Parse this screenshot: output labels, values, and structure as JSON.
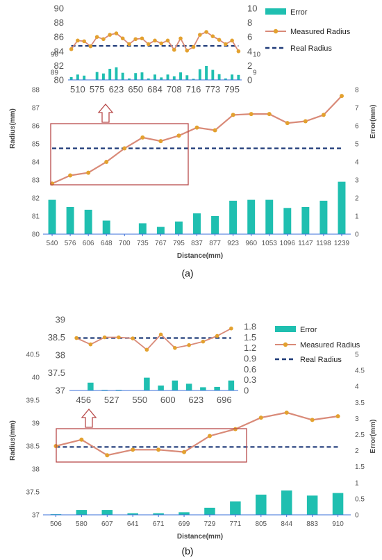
{
  "colors": {
    "error_bar": "#1fbfb0",
    "measured": "#d98a78",
    "measured_marker": "#e3a12f",
    "real": "#1e3a78",
    "box": "#b84a4a",
    "axis_text": "#555555"
  },
  "legend": {
    "error": "Error",
    "measured": "Measured Radius",
    "real": "Real Radius"
  },
  "chart_data": [
    {
      "panel": "(a)",
      "type": "line+bar",
      "xlabel": "Distance(mm)",
      "ylabel_left": "Radius(mm)",
      "ylabel_right": "Error(mm)",
      "categories": [
        "540",
        "576",
        "606",
        "648",
        "700",
        "735",
        "767",
        "795",
        "837",
        "877",
        "923",
        "960",
        "1053",
        "1096",
        "1147",
        "1198",
        "1239"
      ],
      "measured_radius": [
        82.8,
        83.25,
        83.4,
        84.0,
        84.75,
        85.35,
        85.15,
        85.45,
        85.9,
        85.75,
        86.6,
        86.65,
        86.65,
        86.15,
        86.25,
        86.6,
        87.65
      ],
      "real_radius": 84.75,
      "error": [
        1.9,
        1.5,
        1.35,
        0.75,
        0.0,
        0.6,
        0.4,
        0.7,
        1.15,
        1.0,
        1.85,
        1.9,
        1.9,
        1.45,
        1.5,
        1.85,
        2.9
      ],
      "left_axis": {
        "min": 80,
        "max": 88,
        "ticks": [
          "80",
          "81",
          "82",
          "83",
          "84",
          "85",
          "86",
          "87",
          "88"
        ]
      },
      "right_axis": {
        "min": 0,
        "max": 8,
        "ticks": [
          "0",
          "1",
          "2",
          "3",
          "4",
          "5",
          "6",
          "7",
          "8"
        ]
      },
      "inset": {
        "categories_labeled": [
          "510",
          "575",
          "623",
          "650",
          "684",
          "708",
          "716",
          "773",
          "795"
        ],
        "measured_radius": [
          84.3,
          85.5,
          85.4,
          84.7,
          86.0,
          85.7,
          86.3,
          86.5,
          85.8,
          85.0,
          85.7,
          85.8,
          85.0,
          85.5,
          85.1,
          85.5,
          84.2,
          85.8,
          84.1,
          84.6,
          86.3,
          86.7,
          86.1,
          85.6,
          85.0,
          85.5,
          84.0
        ],
        "real_radius": 84.75,
        "error": [
          0.4,
          0.75,
          0.6,
          0.0,
          1.1,
          0.9,
          1.55,
          1.75,
          1.0,
          0.2,
          0.95,
          1.05,
          0.2,
          0.75,
          0.35,
          0.75,
          0.5,
          1.05,
          0.65,
          0.15,
          1.5,
          1.95,
          1.4,
          0.8,
          0.2,
          0.75,
          0.7
        ],
        "left_axis_ticks": [
          "80",
          "82",
          "84",
          "86",
          "88",
          "90"
        ],
        "left_axis_lower_ticks": [
          "89",
          "90"
        ],
        "right_axis_ticks": [
          "0",
          "2",
          "4",
          "6",
          "8",
          "10"
        ],
        "right_axis_lower_ticks": [
          "9",
          "10"
        ]
      }
    },
    {
      "panel": "(b)",
      "type": "line+bar",
      "xlabel": "Distance(mm)",
      "ylabel_left": "Radius(mm)",
      "ylabel_right": "Error(mm)",
      "categories": [
        "506",
        "580",
        "607",
        "641",
        "671",
        "699",
        "729",
        "771",
        "805",
        "844",
        "883",
        "910"
      ],
      "measured_radius": [
        38.5,
        38.64,
        38.3,
        38.42,
        38.42,
        38.37,
        38.72,
        38.87,
        39.12,
        39.23,
        39.07,
        39.15
      ],
      "real_radius": 38.48,
      "error": [
        0.02,
        0.15,
        0.15,
        0.05,
        0.05,
        0.08,
        0.22,
        0.42,
        0.63,
        0.76,
        0.6,
        0.68
      ],
      "left_axis": {
        "min": 37,
        "max": 40.5,
        "ticks": [
          "37",
          "37.5",
          "38",
          "38.5",
          "39",
          "39.5",
          "40",
          "40.5"
        ]
      },
      "right_axis": {
        "min": 0,
        "max": 5,
        "ticks": [
          "0",
          "0.5",
          "1",
          "1.5",
          "2",
          "2.5",
          "3",
          "3.5",
          "4",
          "4.5",
          "5"
        ]
      },
      "inset": {
        "categories_labeled": [
          "456",
          "527",
          "550",
          "600",
          "623",
          "696"
        ],
        "measured_radius": [
          38.48,
          38.3,
          38.5,
          38.5,
          38.47,
          38.15,
          38.58,
          38.2,
          38.28,
          38.38,
          38.54,
          38.75
        ],
        "real_radius": 38.48,
        "error": [
          0.0,
          0.22,
          0.02,
          0.02,
          0.0,
          0.36,
          0.14,
          0.28,
          0.19,
          0.09,
          0.1,
          0.28
        ],
        "left_axis_ticks": [
          "37",
          "37.5",
          "38",
          "38.5",
          "39"
        ],
        "right_axis_ticks": [
          "0",
          "0.3",
          "0.6",
          "0.9",
          "1.2",
          "1.5",
          "1.8"
        ]
      }
    }
  ]
}
